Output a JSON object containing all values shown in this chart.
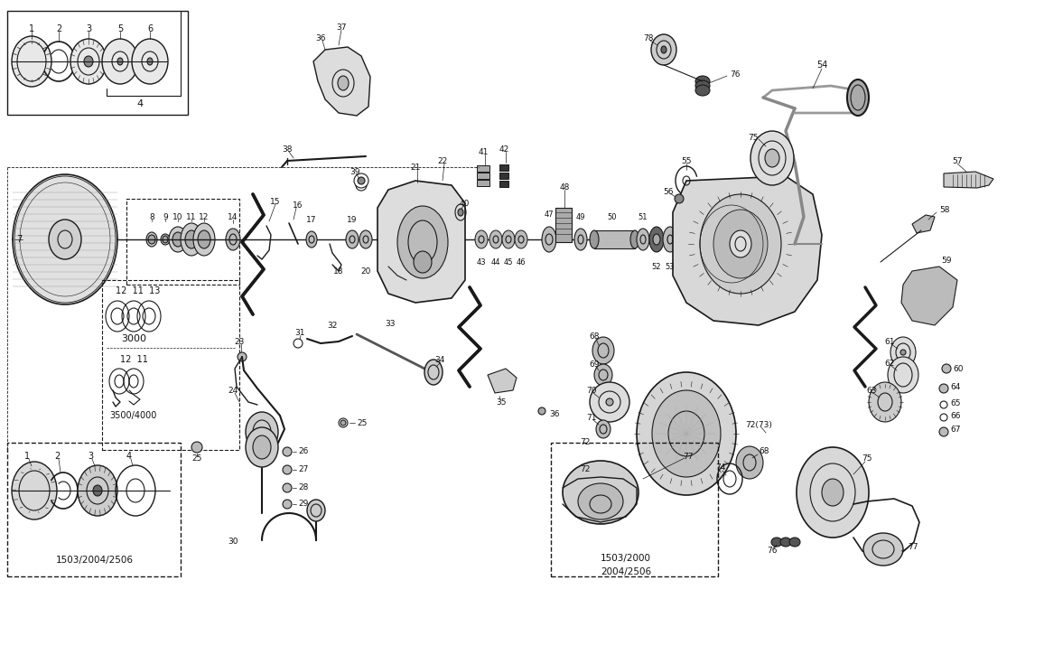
{
  "background_color": "#ffffff",
  "figsize": [
    11.56,
    7.25
  ],
  "dpi": 100,
  "line_color": "#1a1a1a",
  "text_color": "#111111",
  "gray_fill": "#cccccc",
  "dark_fill": "#555555",
  "light_fill": "#e8e8e8"
}
